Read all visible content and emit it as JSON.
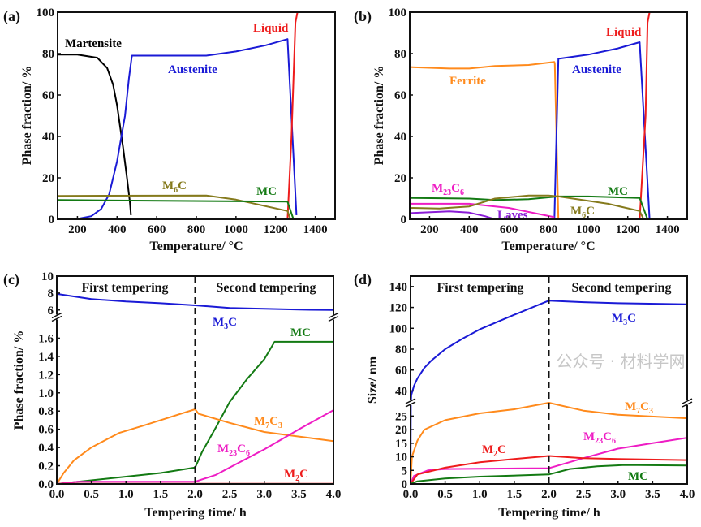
{
  "watermark": "公众号 · 材料学网",
  "chart_data": [
    {
      "panel": "(a)",
      "type": "line",
      "xlabel": "Temperature/ °C",
      "ylabel": "Phase fraction/ %",
      "xlim": [
        100,
        1500
      ],
      "ylim": [
        0,
        100
      ],
      "xticks": [
        200,
        400,
        600,
        800,
        1000,
        1200,
        1400
      ],
      "yticks": [
        0,
        20,
        40,
        60,
        80,
        100
      ],
      "series": [
        {
          "name": "Martensite",
          "label": [
            "Martensite"
          ],
          "color": "#000000",
          "points": [
            [
              100,
              79.5
            ],
            [
              200,
              79.5
            ],
            [
              300,
              78
            ],
            [
              350,
              73
            ],
            [
              380,
              65
            ],
            [
              400,
              55
            ],
            [
              430,
              35
            ],
            [
              450,
              20
            ],
            [
              465,
              8
            ],
            [
              470,
              2
            ]
          ]
        },
        {
          "name": "Austenite",
          "label": [
            "Austenite"
          ],
          "color": "#1a1ad6",
          "points": [
            [
              100,
              0
            ],
            [
              200,
              0.2
            ],
            [
              270,
              1.5
            ],
            [
              320,
              5
            ],
            [
              360,
              12
            ],
            [
              400,
              28
            ],
            [
              440,
              50
            ],
            [
              460,
              68
            ],
            [
              475,
              79
            ],
            [
              480,
              79
            ],
            [
              850,
              79
            ],
            [
              1000,
              81
            ],
            [
              1150,
              84
            ],
            [
              1260,
              87
            ],
            [
              1305,
              2
            ]
          ]
        },
        {
          "name": "Liquid",
          "label": [
            "Liquid"
          ],
          "color": "#ee1c1c",
          "points": [
            [
              1260,
              0
            ],
            [
              1280,
              40
            ],
            [
              1300,
              95
            ],
            [
              1310,
              100
            ],
            [
              1500,
              100
            ]
          ]
        },
        {
          "name": "M6C",
          "label": [
            "M",
            "6",
            "C"
          ],
          "color": "#857a1c",
          "points": [
            [
              100,
              11.3
            ],
            [
              850,
              11.5
            ],
            [
              1000,
              9.5
            ],
            [
              1260,
              4
            ],
            [
              1275,
              0
            ]
          ]
        },
        {
          "name": "MC",
          "label": [
            "MC"
          ],
          "color": "#137a13",
          "points": [
            [
              100,
              9.3
            ],
            [
              1260,
              8.5
            ],
            [
              1290,
              0
            ]
          ]
        }
      ]
    },
    {
      "panel": "(b)",
      "type": "line",
      "xlabel": "Temperature/ °C",
      "ylabel": "Phase fraction/ %",
      "xlim": [
        100,
        1500
      ],
      "ylim": [
        0,
        100
      ],
      "xticks": [
        200,
        400,
        600,
        800,
        1000,
        1200,
        1400
      ],
      "yticks": [
        0,
        20,
        40,
        60,
        80,
        100
      ],
      "series": [
        {
          "name": "Ferrite",
          "label": [
            "Ferrite"
          ],
          "color": "#ff8a1c",
          "points": [
            [
              100,
              73.5
            ],
            [
              300,
              72.8
            ],
            [
              400,
              72.8
            ],
            [
              530,
              74
            ],
            [
              700,
              74.5
            ],
            [
              830,
              76
            ],
            [
              832,
              75
            ],
            [
              850,
              0
            ]
          ]
        },
        {
          "name": "Austenite",
          "label": [
            "Austenite"
          ],
          "color": "#1a1ad6",
          "points": [
            [
              830,
              0
            ],
            [
              850,
              77.5
            ],
            [
              1000,
              79.5
            ],
            [
              1150,
              82.5
            ],
            [
              1260,
              85.5
            ],
            [
              1310,
              0
            ]
          ]
        },
        {
          "name": "Liquid",
          "label": [
            "Liquid"
          ],
          "color": "#ee1c1c",
          "points": [
            [
              1260,
              0
            ],
            [
              1290,
              50
            ],
            [
              1300,
              95
            ],
            [
              1310,
              100
            ],
            [
              1500,
              100
            ]
          ]
        },
        {
          "name": "M23C6",
          "label": [
            "M",
            "23",
            "C",
            "6"
          ],
          "color": "#ee1cc4",
          "points": [
            [
              100,
              7.5
            ],
            [
              400,
              7.5
            ],
            [
              600,
              5.5
            ],
            [
              830,
              1
            ]
          ]
        },
        {
          "name": "Laves",
          "label": [
            "Laves"
          ],
          "color": "#8a1cd6",
          "points": [
            [
              100,
              3
            ],
            [
              300,
              3.8
            ],
            [
              400,
              3.2
            ],
            [
              480,
              1.5
            ],
            [
              530,
              0
            ]
          ]
        },
        {
          "name": "MC",
          "label": [
            "MC"
          ],
          "color": "#137a13",
          "points": [
            [
              100,
              10.3
            ],
            [
              400,
              10
            ],
            [
              530,
              9.3
            ],
            [
              700,
              9.7
            ],
            [
              850,
              11
            ],
            [
              1000,
              11
            ],
            [
              1260,
              10.3
            ],
            [
              1300,
              0
            ]
          ]
        },
        {
          "name": "M6C",
          "label": [
            "M",
            "6",
            "C"
          ],
          "color": "#857a1c",
          "points": [
            [
              100,
              5.5
            ],
            [
              250,
              5.2
            ],
            [
              400,
              6.2
            ],
            [
              530,
              10
            ],
            [
              700,
              11.5
            ],
            [
              800,
              11.5
            ],
            [
              850,
              11
            ],
            [
              1100,
              7.5
            ],
            [
              1260,
              4
            ],
            [
              1280,
              0
            ]
          ]
        }
      ]
    },
    {
      "panel": "(c)",
      "type": "line",
      "xlabel": "Tempering time/ h",
      "ylabel": "Phase fraction/ %",
      "xlim": [
        0,
        4
      ],
      "ylim_lower": [
        0,
        1.8
      ],
      "ylim_upper": [
        5.5,
        10
      ],
      "broken_y_axis": true,
      "xticks": [
        "0.0",
        "0.5",
        "1.0",
        "1.5",
        "2.0",
        "2.5",
        "3.0",
        "3.5",
        "4.0"
      ],
      "yticks_lower": [
        "0.0",
        "0.2",
        "0.4",
        "0.6",
        "0.8",
        "1.0",
        "1.2",
        "1.4",
        "1.6"
      ],
      "yticks_upper": [
        "6",
        "8",
        "10"
      ],
      "divider_x": 2,
      "regions": [
        "First tempering",
        "Second tempering"
      ],
      "series": [
        {
          "name": "M3C",
          "label": [
            "M",
            "3",
            "C"
          ],
          "color": "#1a1ad6",
          "points": [
            [
              0,
              7.9
            ],
            [
              0.5,
              7.3
            ],
            [
              1,
              7.0
            ],
            [
              1.5,
              6.8
            ],
            [
              2,
              6.55
            ],
            [
              2.5,
              6.25
            ],
            [
              3,
              6.15
            ],
            [
              3.5,
              6.05
            ],
            [
              4,
              6.0
            ]
          ]
        },
        {
          "name": "MC",
          "label": [
            "MC"
          ],
          "color": "#137a13",
          "points": [
            [
              0,
              0
            ],
            [
              0.5,
              0.04
            ],
            [
              1,
              0.08
            ],
            [
              1.5,
              0.12
            ],
            [
              2,
              0.18
            ],
            [
              2.1,
              0.35
            ],
            [
              2.3,
              0.62
            ],
            [
              2.5,
              0.9
            ],
            [
              2.75,
              1.15
            ],
            [
              3,
              1.37
            ],
            [
              3.15,
              1.56
            ],
            [
              4,
              1.56
            ]
          ]
        },
        {
          "name": "M7C3",
          "label": [
            "M",
            "7",
            "C",
            "3"
          ],
          "color": "#ff8a1c",
          "points": [
            [
              0,
              0
            ],
            [
              0.1,
              0.12
            ],
            [
              0.25,
              0.26
            ],
            [
              0.5,
              0.4
            ],
            [
              0.75,
              0.5
            ],
            [
              0.9,
              0.56
            ],
            [
              1.25,
              0.64
            ],
            [
              1.5,
              0.7
            ],
            [
              2,
              0.82
            ],
            [
              2.05,
              0.77
            ],
            [
              2.5,
              0.67
            ],
            [
              3,
              0.57
            ],
            [
              3.5,
              0.52
            ],
            [
              4,
              0.47
            ]
          ]
        },
        {
          "name": "M23C6",
          "label": [
            "M",
            "23",
            "C",
            "6"
          ],
          "color": "#ee1cc4",
          "points": [
            [
              0,
              0
            ],
            [
              0.3,
              0.025
            ],
            [
              2,
              0.025
            ],
            [
              2.3,
              0.1
            ],
            [
              2.6,
              0.22
            ],
            [
              3,
              0.38
            ],
            [
              3.5,
              0.6
            ],
            [
              4,
              0.81
            ]
          ]
        },
        {
          "name": "M2C",
          "label": [
            "M",
            "2",
            "C"
          ],
          "color": "#ee1c1c",
          "points": [
            [
              0,
              0.002
            ],
            [
              4,
              0.002
            ]
          ]
        }
      ]
    },
    {
      "panel": "(d)",
      "type": "line",
      "xlabel": "Tempering time/ h",
      "ylabel": "Size/ nm",
      "xlim": [
        0,
        4
      ],
      "ylim_lower": [
        0,
        29
      ],
      "ylim_upper": [
        31,
        150
      ],
      "broken_y_axis": true,
      "xticks": [
        "0.0",
        "0.5",
        "1.0",
        "1.5",
        "2.0",
        "2.5",
        "3.0",
        "3.5",
        "4.0"
      ],
      "yticks_lower": [
        "0",
        "5",
        "10",
        "15",
        "20",
        "25"
      ],
      "yticks_upper": [
        "40",
        "60",
        "80",
        "100",
        "120",
        "140"
      ],
      "divider_x": 2,
      "regions": [
        "First tempering",
        "Second tempering"
      ],
      "series": [
        {
          "name": "M3C",
          "label": [
            "M",
            "3",
            "C"
          ],
          "color": "#1a1ad6",
          "points": [
            [
              0,
              0
            ],
            [
              0.005,
              30
            ],
            [
              0.01,
              36
            ],
            [
              0.05,
              45
            ],
            [
              0.1,
              52
            ],
            [
              0.2,
              62
            ],
            [
              0.3,
              69
            ],
            [
              0.5,
              80
            ],
            [
              0.75,
              90
            ],
            [
              1,
              99
            ],
            [
              1.5,
              113
            ],
            [
              2,
              126.5
            ],
            [
              2.5,
              125
            ],
            [
              3,
              124
            ],
            [
              4,
              123
            ]
          ]
        },
        {
          "name": "M7C3",
          "label": [
            "M",
            "7",
            "C",
            "3"
          ],
          "color": "#ff8a1c",
          "points": [
            [
              0,
              0
            ],
            [
              0.02,
              10
            ],
            [
              0.1,
              16
            ],
            [
              0.2,
              20
            ],
            [
              0.5,
              23.5
            ],
            [
              1,
              26
            ],
            [
              1.5,
              27.5
            ],
            [
              2,
              29.5
            ],
            [
              2.5,
              27
            ],
            [
              3,
              25.5
            ],
            [
              4,
              24.2
            ]
          ]
        },
        {
          "name": "M23C6",
          "label": [
            "M",
            "23",
            "C",
            "6"
          ],
          "color": "#ee1cc4",
          "points": [
            [
              0,
              0
            ],
            [
              0.05,
              3
            ],
            [
              0.25,
              5
            ],
            [
              0.5,
              5.5
            ],
            [
              2,
              5.8
            ],
            [
              2.5,
              9.5
            ],
            [
              3,
              13
            ],
            [
              3.5,
              15
            ],
            [
              4,
              17
            ]
          ]
        },
        {
          "name": "M2C",
          "label": [
            "M",
            "2",
            "C"
          ],
          "color": "#ee1c1c",
          "points": [
            [
              0,
              0
            ],
            [
              0.1,
              3.5
            ],
            [
              0.5,
              6
            ],
            [
              1,
              8
            ],
            [
              1.5,
              9.2
            ],
            [
              2,
              10.3
            ],
            [
              2.5,
              9.5
            ],
            [
              3,
              9.2
            ],
            [
              4,
              8.8
            ]
          ]
        },
        {
          "name": "MC",
          "label": [
            "MC"
          ],
          "color": "#137a13",
          "points": [
            [
              0,
              0
            ],
            [
              0.1,
              1
            ],
            [
              0.5,
              2
            ],
            [
              1,
              2.7
            ],
            [
              2,
              3.5
            ],
            [
              2.3,
              5.5
            ],
            [
              2.7,
              6.5
            ],
            [
              3.1,
              7
            ],
            [
              4,
              6.8
            ]
          ]
        }
      ]
    }
  ]
}
